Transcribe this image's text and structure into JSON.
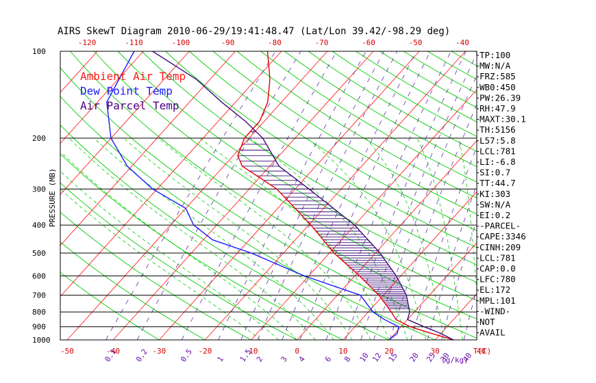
{
  "chart_data": {
    "type": "line",
    "title": "AIRS SkewT Diagram 2010-06-29/19:41:48.47 (Lat/Lon 39.42/-98.29 deg)",
    "ylabel": "PRESSURE (MB)",
    "y_scale": "log",
    "ylim": [
      1000,
      100
    ],
    "xlim": [
      -50,
      40
    ],
    "temp_unit_label": "T(C)",
    "mixing_unit_label": "(g/kg)",
    "pressure_ticks": [
      100,
      200,
      300,
      400,
      500,
      600,
      700,
      800,
      900,
      1000
    ],
    "bottom_temp_ticks": [
      -50,
      -40,
      -30,
      -20,
      -10,
      0,
      10,
      20,
      30,
      40
    ],
    "top_temp_ticks": [
      -120,
      -110,
      -100,
      -90,
      -80,
      -70,
      -60,
      -50,
      -40
    ],
    "mixing_ratio_ticks": [
      "0.1",
      "0.2",
      "0.5",
      "1",
      "1.5",
      "2",
      "3",
      "4",
      "6",
      "8",
      "10",
      "12",
      "15",
      "20",
      "25",
      "30",
      "40"
    ],
    "grid": true,
    "legend": [
      {
        "name": "Ambient Air Temp",
        "color": "#ff1a1a"
      },
      {
        "name": "Dew Point Temp",
        "color": "#1a1aff"
      },
      {
        "name": "Air Parcel Temp",
        "color": "#4b0082"
      }
    ],
    "colors": {
      "isotherm": "#ff2020",
      "dry_adiabat": "#00cc00",
      "moist_adiabat": "#00cc00",
      "mixing_ratio": "#5a2ea6",
      "ambient": "#e00000",
      "dewpoint": "#1a1aff",
      "parcel": "#3b0a7a",
      "cape_hatch": "#3b0a7a"
    },
    "series": [
      {
        "name": "Ambient Air Temp",
        "points": [
          [
            1000,
            34
          ],
          [
            950,
            28
          ],
          [
            900,
            22
          ],
          [
            850,
            17.5
          ],
          [
            800,
            15
          ],
          [
            700,
            9
          ],
          [
            600,
            1
          ],
          [
            500,
            -9
          ],
          [
            400,
            -19.5
          ],
          [
            300,
            -34
          ],
          [
            250,
            -46
          ],
          [
            230,
            -49
          ],
          [
            200,
            -51
          ],
          [
            175,
            -51
          ],
          [
            150,
            -53
          ],
          [
            125,
            -57
          ],
          [
            100,
            -63
          ]
        ]
      },
      {
        "name": "Dew Point Temp",
        "points": [
          [
            1000,
            20
          ],
          [
            950,
            20.5
          ],
          [
            900,
            19.5
          ],
          [
            850,
            15
          ],
          [
            800,
            11
          ],
          [
            700,
            5
          ],
          [
            600,
            -11
          ],
          [
            500,
            -27
          ],
          [
            450,
            -38
          ],
          [
            400,
            -45
          ],
          [
            350,
            -50
          ],
          [
            300,
            -61
          ],
          [
            250,
            -71
          ],
          [
            200,
            -80
          ],
          [
            150,
            -88
          ],
          [
            100,
            -92
          ]
        ]
      },
      {
        "name": "Air Parcel Temp",
        "points": [
          [
            1000,
            34
          ],
          [
            950,
            30
          ],
          [
            900,
            25
          ],
          [
            850,
            20
          ],
          [
            800,
            19
          ],
          [
            700,
            15
          ],
          [
            600,
            9
          ],
          [
            500,
            1
          ],
          [
            400,
            -10
          ],
          [
            300,
            -27
          ],
          [
            250,
            -38
          ],
          [
            200,
            -47
          ],
          [
            175,
            -54
          ],
          [
            150,
            -63
          ],
          [
            125,
            -73
          ],
          [
            100,
            -88
          ]
        ]
      }
    ],
    "indices": [
      "TP:100",
      "MW:N/A",
      "FRZ:585",
      "WB0:450",
      "PW:26.39",
      "RH:47.9",
      "MAXT:30.1",
      "TH:5156",
      "L57:5.8",
      "LCL:781",
      "LI:-6.8",
      "SI:0.7",
      "TT:44.7",
      "KI:303",
      "SW:N/A",
      "EI:0.2",
      "-PARCEL-",
      "CAPE:3346",
      "CINH:209",
      "LCL:781",
      "CAP:0.0",
      "LFC:780",
      "EL:172",
      "MPL:101",
      "-WIND-",
      "NOT",
      "AVAIL"
    ]
  }
}
